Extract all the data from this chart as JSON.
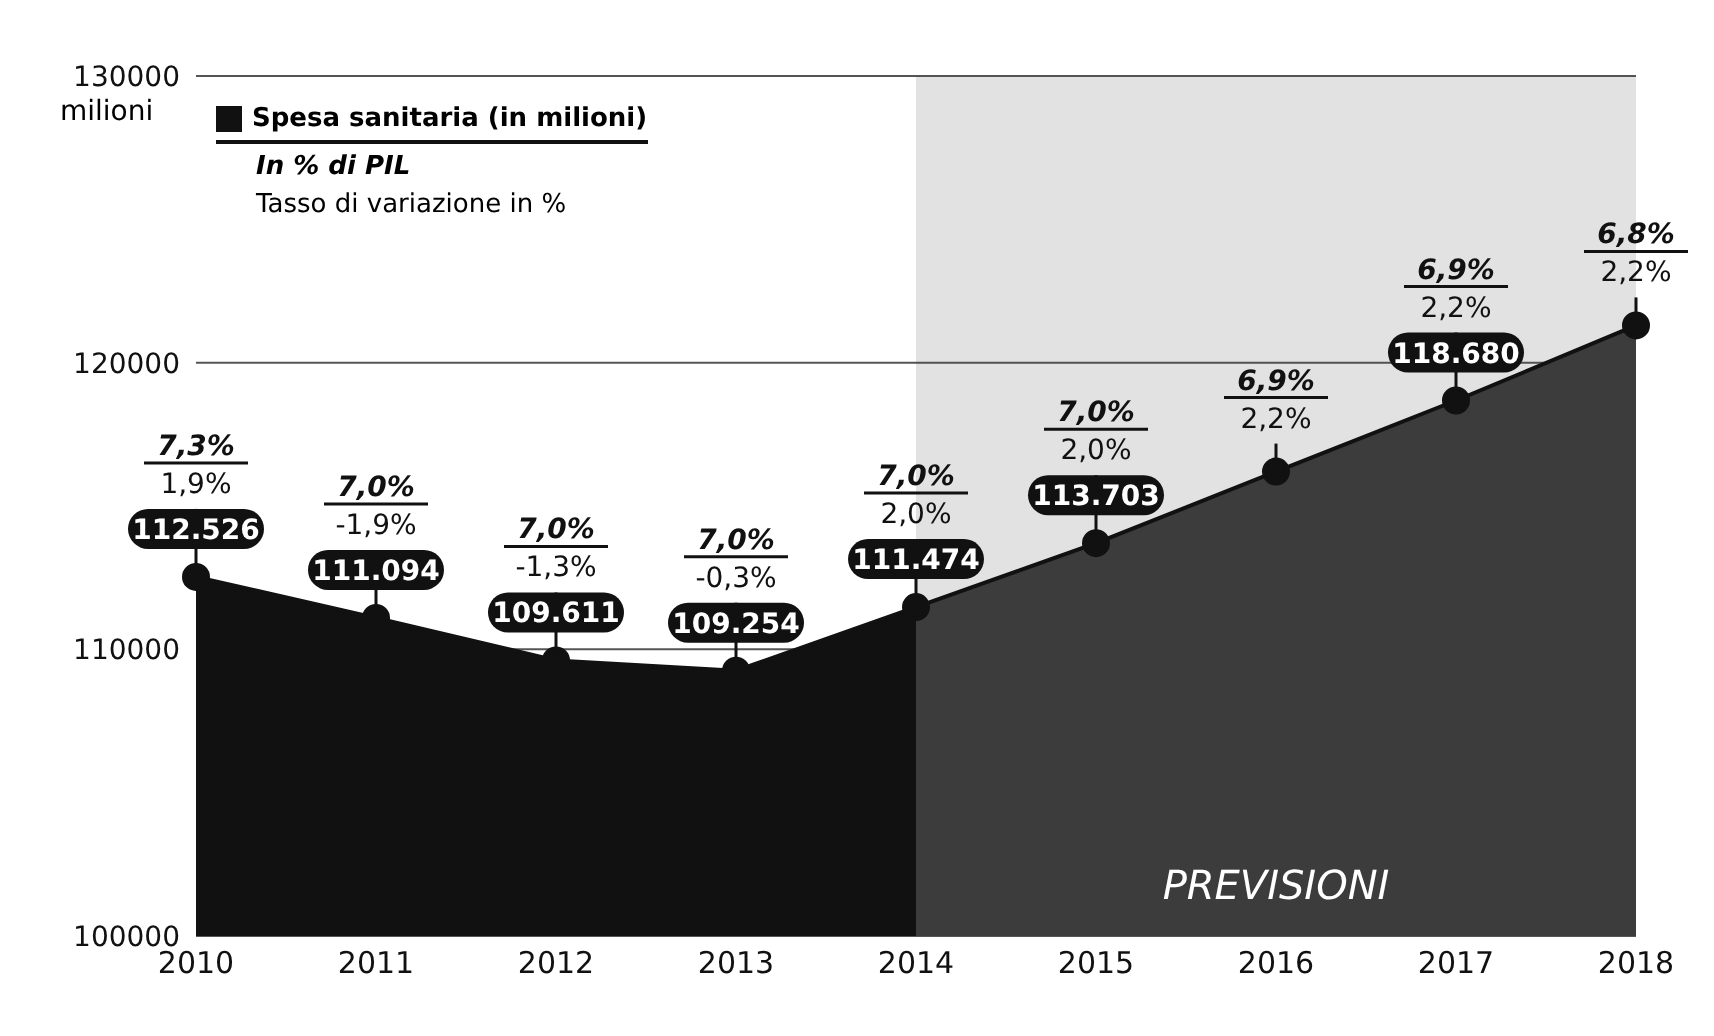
{
  "chart_data": {
    "type": "area",
    "ylabel": "milioni",
    "categories": [
      "2010",
      "2011",
      "2012",
      "2013",
      "2014",
      "2015",
      "2016",
      "2017",
      "2018"
    ],
    "series": [
      {
        "name": "Spesa sanitaria (in milioni)",
        "color": "#111111",
        "values": [
          112526,
          111094,
          109611,
          109254,
          111474,
          113703,
          116200,
          118680,
          121300
        ],
        "value_labels": [
          "112.526",
          "111.094",
          "109.611",
          "109.254",
          "111.474",
          "113.703",
          null,
          "118.680",
          null
        ]
      }
    ],
    "ylim": [
      100000,
      130000
    ],
    "yticks": [
      100000,
      110000,
      120000,
      130000
    ],
    "grid": "y",
    "legend": "top left",
    "marker": "circle",
    "bands": [
      {
        "axis": "x",
        "from": "2014",
        "to": "2018",
        "label": "PREVISIONI",
        "color": "#3c3c3c"
      }
    ],
    "annotations": [
      "In % di PIL",
      "Tasso di variazione in %",
      "7,3%",
      "7,0%",
      "7,0%",
      "7,0%",
      "7,0%",
      "7,0%",
      "6,9%",
      "6,9%",
      "6,8%",
      {
        "text": "1,9%",
        "x": "2010",
        "y": 112526
      },
      {
        "text": "-1,9%",
        "x": "2011",
        "y": 111094
      },
      {
        "text": "-1,3%",
        "x": "2012",
        "y": 109611
      },
      {
        "text": "-0,3%",
        "x": "2013",
        "y": 109254
      },
      {
        "text": "2,0%",
        "x": "2014",
        "y": 111474
      },
      {
        "text": "2,0%",
        "x": "2015",
        "y": 113703
      },
      {
        "text": "2,2%",
        "x": "2016",
        "y": 116200
      },
      {
        "text": "2,2%",
        "x": "2017",
        "y": 118680
      },
      {
        "text": "2,2%",
        "x": "2018",
        "y": 121300
      }
    ]
  }
}
